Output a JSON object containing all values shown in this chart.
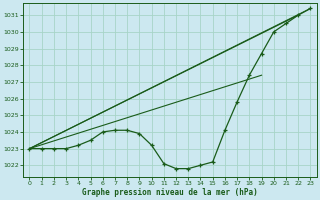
{
  "title": "Graphe pression niveau de la mer (hPa)",
  "background_color": "#cce8f0",
  "grid_color": "#a8d4c8",
  "line_color": "#1a5c1a",
  "xlim": [
    -0.5,
    23.5
  ],
  "ylim": [
    1021.3,
    1031.7
  ],
  "xticks": [
    0,
    1,
    2,
    3,
    4,
    5,
    6,
    7,
    8,
    9,
    10,
    11,
    12,
    13,
    14,
    15,
    16,
    17,
    18,
    19,
    20,
    21,
    22,
    23
  ],
  "yticks": [
    1022,
    1023,
    1024,
    1025,
    1026,
    1027,
    1028,
    1029,
    1030,
    1031
  ],
  "main_line": {
    "x": [
      0,
      1,
      2,
      3,
      4,
      5,
      6,
      7,
      8,
      9,
      10,
      11,
      12,
      13,
      14,
      15,
      16,
      17,
      18,
      19,
      20,
      21,
      22,
      23
    ],
    "y": [
      1023.0,
      1023.0,
      1023.0,
      1023.0,
      1023.2,
      1023.5,
      1024.0,
      1024.1,
      1024.1,
      1023.9,
      1023.2,
      1022.1,
      1021.8,
      1021.8,
      1022.0,
      1022.2,
      1024.1,
      1025.8,
      1027.4,
      1028.7,
      1030.0,
      1030.5,
      1031.0,
      1031.4
    ]
  },
  "trend1": {
    "x": [
      0,
      23
    ],
    "y": [
      1023.0,
      1031.4
    ]
  },
  "trend2": {
    "x": [
      0,
      22
    ],
    "y": [
      1023.0,
      1031.0
    ]
  },
  "trend3": {
    "x": [
      0,
      19
    ],
    "y": [
      1023.0,
      1027.4
    ]
  }
}
